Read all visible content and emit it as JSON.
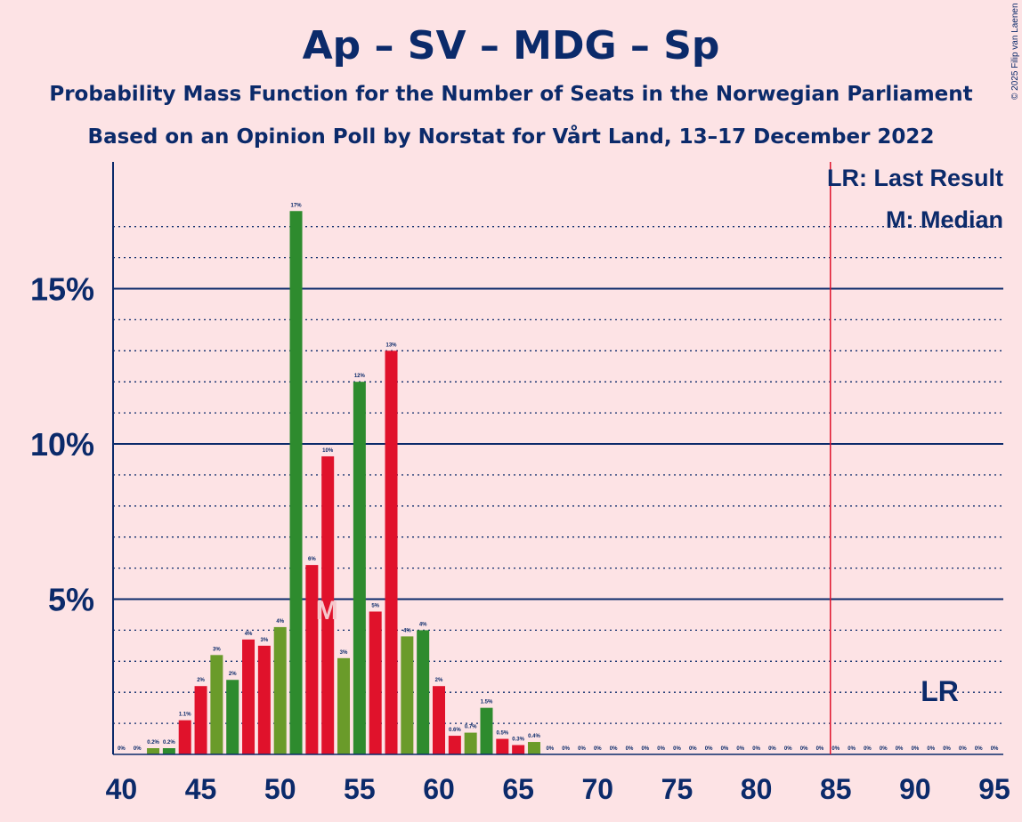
{
  "header": {
    "title": "Ap – SV – MDG – Sp",
    "subtitle1": "Probability Mass Function for the Number of Seats in the Norwegian Parliament",
    "subtitle2": "Based on an Opinion Poll by Norstat for Vårt Land, 13–17 December 2022",
    "copyright": "© 2025 Filip van Laenen"
  },
  "legend": {
    "lr": "LR: Last Result",
    "m": "M: Median"
  },
  "markers": {
    "median_label": "M",
    "median_seat": 53,
    "last_result_label": "LR",
    "last_result_seat": 92,
    "majority_line_seat": 85
  },
  "colors": {
    "red": "#E0122B",
    "green": "#6A9B2A",
    "dark_green": "#2E8B2E",
    "axis": "#0B2A6A",
    "majority_line": "#E0122B",
    "background": "#FDE3E5"
  },
  "chart_data": {
    "type": "bar",
    "title": "Ap – SV – MDG – Sp",
    "xlabel": "",
    "ylabel": "",
    "xlim": [
      40,
      95
    ],
    "ylim": [
      0,
      19
    ],
    "x_ticks": [
      "40",
      "45",
      "50",
      "55",
      "60",
      "65",
      "70",
      "75",
      "80",
      "85",
      "90",
      "95"
    ],
    "y_ticks": [
      {
        "value": 5,
        "label": "5%"
      },
      {
        "value": 10,
        "label": "10%"
      },
      {
        "value": 15,
        "label": "15%"
      }
    ],
    "bars": [
      {
        "seat": 40,
        "value": 0,
        "label": "0%",
        "color": "#6A9B2A"
      },
      {
        "seat": 41,
        "value": 0,
        "label": "0%",
        "color": "#6A9B2A"
      },
      {
        "seat": 42,
        "value": 0.2,
        "label": "0.2%",
        "color": "#6A9B2A"
      },
      {
        "seat": 43,
        "value": 0.2,
        "label": "0.2%",
        "color": "#2E8B2E"
      },
      {
        "seat": 44,
        "value": 1.1,
        "label": "1.1%",
        "color": "#E0122B"
      },
      {
        "seat": 45,
        "value": 2.2,
        "label": "2%",
        "color": "#E0122B"
      },
      {
        "seat": 46,
        "value": 3.2,
        "label": "3%",
        "color": "#6A9B2A"
      },
      {
        "seat": 47,
        "value": 2.4,
        "label": "2%",
        "color": "#2E8B2E"
      },
      {
        "seat": 48,
        "value": 3.7,
        "label": "4%",
        "color": "#E0122B"
      },
      {
        "seat": 49,
        "value": 3.5,
        "label": "3%",
        "color": "#E0122B"
      },
      {
        "seat": 50,
        "value": 4.1,
        "label": "4%",
        "color": "#6A9B2A"
      },
      {
        "seat": 51,
        "value": 17.5,
        "label": "17%",
        "color": "#2E8B2E"
      },
      {
        "seat": 52,
        "value": 6.1,
        "label": "6%",
        "color": "#E0122B"
      },
      {
        "seat": 53,
        "value": 9.6,
        "label": "10%",
        "color": "#E0122B"
      },
      {
        "seat": 54,
        "value": 3.1,
        "label": "3%",
        "color": "#6A9B2A"
      },
      {
        "seat": 55,
        "value": 12.0,
        "label": "12%",
        "color": "#2E8B2E"
      },
      {
        "seat": 56,
        "value": 4.6,
        "label": "5%",
        "color": "#E0122B"
      },
      {
        "seat": 57,
        "value": 13.0,
        "label": "13%",
        "color": "#E0122B"
      },
      {
        "seat": 58,
        "value": 3.8,
        "label": "4%",
        "color": "#6A9B2A"
      },
      {
        "seat": 59,
        "value": 4.0,
        "label": "4%",
        "color": "#2E8B2E"
      },
      {
        "seat": 60,
        "value": 2.2,
        "label": "2%",
        "color": "#E0122B"
      },
      {
        "seat": 61,
        "value": 0.6,
        "label": "0.6%",
        "color": "#E0122B"
      },
      {
        "seat": 62,
        "value": 0.7,
        "label": "0.7%",
        "color": "#6A9B2A"
      },
      {
        "seat": 63,
        "value": 1.5,
        "label": "1.5%",
        "color": "#2E8B2E"
      },
      {
        "seat": 64,
        "value": 0.5,
        "label": "0.5%",
        "color": "#E0122B"
      },
      {
        "seat": 65,
        "value": 0.3,
        "label": "0.3%",
        "color": "#E0122B"
      },
      {
        "seat": 66,
        "value": 0.4,
        "label": "0.4%",
        "color": "#6A9B2A"
      },
      {
        "seat": 67,
        "value": 0,
        "label": "0%",
        "color": "#2E8B2E"
      },
      {
        "seat": 68,
        "value": 0,
        "label": "0%",
        "color": "#E0122B"
      },
      {
        "seat": 69,
        "value": 0,
        "label": "0%",
        "color": "#E0122B"
      },
      {
        "seat": 70,
        "value": 0,
        "label": "0%",
        "color": "#6A9B2A"
      },
      {
        "seat": 71,
        "value": 0,
        "label": "0%",
        "color": "#2E8B2E"
      },
      {
        "seat": 72,
        "value": 0,
        "label": "0%",
        "color": "#E0122B"
      },
      {
        "seat": 73,
        "value": 0,
        "label": "0%",
        "color": "#E0122B"
      },
      {
        "seat": 74,
        "value": 0,
        "label": "0%",
        "color": "#6A9B2A"
      },
      {
        "seat": 75,
        "value": 0,
        "label": "0%",
        "color": "#2E8B2E"
      },
      {
        "seat": 76,
        "value": 0,
        "label": "0%",
        "color": "#E0122B"
      },
      {
        "seat": 77,
        "value": 0,
        "label": "0%",
        "color": "#E0122B"
      },
      {
        "seat": 78,
        "value": 0,
        "label": "0%",
        "color": "#6A9B2A"
      },
      {
        "seat": 79,
        "value": 0,
        "label": "0%",
        "color": "#2E8B2E"
      },
      {
        "seat": 80,
        "value": 0,
        "label": "0%",
        "color": "#E0122B"
      },
      {
        "seat": 81,
        "value": 0,
        "label": "0%",
        "color": "#E0122B"
      },
      {
        "seat": 82,
        "value": 0,
        "label": "0%",
        "color": "#6A9B2A"
      },
      {
        "seat": 83,
        "value": 0,
        "label": "0%",
        "color": "#2E8B2E"
      },
      {
        "seat": 84,
        "value": 0,
        "label": "0%",
        "color": "#E0122B"
      },
      {
        "seat": 85,
        "value": 0,
        "label": "0%",
        "color": "#E0122B"
      },
      {
        "seat": 86,
        "value": 0,
        "label": "0%",
        "color": "#6A9B2A"
      },
      {
        "seat": 87,
        "value": 0,
        "label": "0%",
        "color": "#2E8B2E"
      },
      {
        "seat": 88,
        "value": 0,
        "label": "0%",
        "color": "#E0122B"
      },
      {
        "seat": 89,
        "value": 0,
        "label": "0%",
        "color": "#E0122B"
      },
      {
        "seat": 90,
        "value": 0,
        "label": "0%",
        "color": "#6A9B2A"
      },
      {
        "seat": 91,
        "value": 0,
        "label": "0%",
        "color": "#2E8B2E"
      },
      {
        "seat": 92,
        "value": 0,
        "label": "0%",
        "color": "#E0122B"
      },
      {
        "seat": 93,
        "value": 0,
        "label": "0%",
        "color": "#E0122B"
      },
      {
        "seat": 94,
        "value": 0,
        "label": "0%",
        "color": "#6A9B2A"
      },
      {
        "seat": 95,
        "value": 0,
        "label": "0%",
        "color": "#2E8B2E"
      }
    ],
    "grid": true,
    "legend_position": "top-right"
  }
}
